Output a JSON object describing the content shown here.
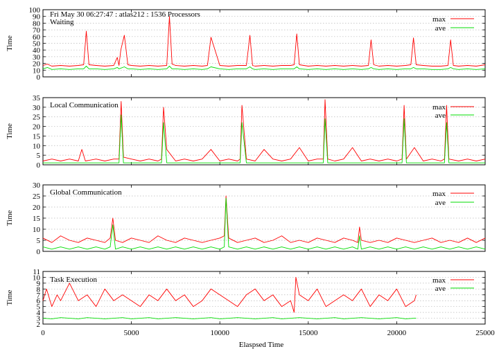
{
  "chart_data": [
    {
      "type": "line",
      "header": "Fri May 30 06:27:47 : atlas212 : 1536 Processors",
      "title": "Waiting",
      "xlabel": "",
      "ylabel": "Time",
      "xlim": [
        0,
        25000
      ],
      "ylim": [
        0,
        100
      ],
      "yticks": [
        0,
        10,
        20,
        30,
        40,
        50,
        60,
        70,
        80,
        90,
        100
      ],
      "grid": true,
      "legend_position": "top-right",
      "series": [
        {
          "name": "max",
          "color": "#ff0000",
          "x": [
            0,
            250,
            500,
            1000,
            1500,
            2000,
            2300,
            2450,
            2600,
            3000,
            3500,
            4000,
            4200,
            4300,
            4400,
            4600,
            4800,
            5000,
            5500,
            6000,
            6500,
            7000,
            7150,
            7300,
            7500,
            8000,
            8500,
            9000,
            9300,
            9500,
            10000,
            10500,
            11000,
            11500,
            11700,
            11850,
            12000,
            12500,
            13000,
            13500,
            14000,
            14200,
            14350,
            14500,
            15000,
            15500,
            16000,
            16500,
            17000,
            17500,
            18000,
            18400,
            18550,
            18700,
            19000,
            19500,
            20000,
            20500,
            20800,
            20950,
            21100,
            21500,
            22000,
            22500,
            22900,
            23050,
            23200,
            23500,
            24000,
            24500,
            25000
          ],
          "values": [
            17,
            19,
            16,
            17,
            16,
            17,
            18,
            68,
            18,
            17,
            16,
            17,
            29,
            17,
            40,
            62,
            18,
            17,
            16,
            17,
            16,
            17,
            90,
            19,
            17,
            16,
            17,
            16,
            17,
            59,
            17,
            16,
            17,
            17,
            62,
            17,
            16,
            17,
            16,
            17,
            17,
            18,
            64,
            18,
            16,
            17,
            16,
            17,
            16,
            17,
            16,
            17,
            55,
            18,
            16,
            17,
            16,
            17,
            18,
            58,
            18,
            17,
            16,
            16,
            17,
            55,
            17,
            16,
            17,
            16,
            18
          ]
        },
        {
          "name": "ave",
          "color": "#00dd00",
          "x": [
            0,
            250,
            500,
            1000,
            1500,
            2000,
            2300,
            2450,
            2600,
            3000,
            3500,
            4000,
            4200,
            4300,
            4400,
            4600,
            4800,
            5000,
            5500,
            6000,
            6500,
            7000,
            7150,
            7300,
            7500,
            8000,
            8500,
            9000,
            9300,
            9500,
            10000,
            10500,
            11000,
            11500,
            11700,
            11850,
            12000,
            12500,
            13000,
            13500,
            14000,
            14200,
            14350,
            14500,
            15000,
            15500,
            16000,
            16500,
            17000,
            17500,
            18000,
            18400,
            18550,
            18700,
            19000,
            19500,
            20000,
            20500,
            20800,
            20950,
            21100,
            21500,
            22000,
            22500,
            22900,
            23050,
            23200,
            23500,
            24000,
            24500,
            25000
          ],
          "values": [
            12,
            14,
            11,
            12,
            11,
            12,
            12,
            16,
            12,
            12,
            11,
            12,
            14,
            12,
            13,
            15,
            12,
            12,
            11,
            12,
            11,
            12,
            16,
            12,
            12,
            11,
            12,
            11,
            12,
            15,
            12,
            11,
            12,
            12,
            15,
            12,
            11,
            12,
            11,
            12,
            12,
            12,
            15,
            12,
            11,
            12,
            11,
            12,
            11,
            12,
            11,
            12,
            14,
            12,
            11,
            12,
            11,
            12,
            12,
            14,
            12,
            12,
            11,
            11,
            12,
            14,
            12,
            11,
            12,
            11,
            12
          ]
        }
      ]
    },
    {
      "type": "line",
      "title": "Local Communication",
      "xlabel": "",
      "ylabel": "Time",
      "xlim": [
        0,
        25000
      ],
      "ylim": [
        0,
        35
      ],
      "yticks": [
        0,
        5,
        10,
        15,
        20,
        25,
        30,
        35
      ],
      "grid": true,
      "legend_position": "top-right",
      "series": [
        {
          "name": "max",
          "color": "#ff0000",
          "x": [
            0,
            500,
            1000,
            1500,
            2000,
            2200,
            2400,
            3000,
            3500,
            4000,
            4300,
            4420,
            4550,
            5000,
            5500,
            6000,
            6500,
            6700,
            6820,
            7000,
            7500,
            8000,
            8500,
            9000,
            9500,
            10000,
            10500,
            11000,
            11150,
            11250,
            11500,
            12000,
            12500,
            13000,
            13500,
            14000,
            14500,
            15000,
            15500,
            15850,
            15950,
            16100,
            16500,
            17000,
            17500,
            18000,
            18500,
            19000,
            19500,
            20000,
            20300,
            20420,
            20550,
            21000,
            21500,
            22000,
            22500,
            22700,
            22820,
            22950,
            23500,
            24000,
            24500,
            25000
          ],
          "values": [
            2,
            3,
            2,
            3,
            2,
            8,
            2,
            3,
            2,
            3,
            3,
            33,
            4,
            3,
            2,
            3,
            2,
            3,
            30,
            8,
            2,
            3,
            2,
            3,
            8,
            2,
            3,
            2,
            3,
            31,
            3,
            2,
            8,
            3,
            2,
            3,
            9,
            2,
            3,
            3,
            34,
            3,
            2,
            3,
            9,
            2,
            3,
            2,
            3,
            2,
            3,
            31,
            3,
            9,
            2,
            3,
            2,
            3,
            31,
            3,
            2,
            3,
            2,
            3
          ]
        },
        {
          "name": "ave",
          "color": "#00dd00",
          "x": [
            0,
            500,
            1000,
            1500,
            2000,
            2500,
            3000,
            3500,
            4000,
            4300,
            4420,
            4550,
            5000,
            5500,
            6000,
            6500,
            6700,
            6820,
            7000,
            7500,
            8000,
            8500,
            9000,
            9500,
            10000,
            10500,
            11000,
            11150,
            11250,
            11500,
            12000,
            12500,
            13000,
            13500,
            14000,
            14500,
            15000,
            15500,
            15850,
            15950,
            16100,
            16500,
            17000,
            17500,
            18000,
            18500,
            19000,
            19500,
            20000,
            20300,
            20420,
            20550,
            21000,
            21500,
            22000,
            22500,
            22700,
            22820,
            22950,
            23500,
            24000,
            24500,
            25000
          ],
          "values": [
            1,
            1,
            1,
            1,
            1,
            1,
            1,
            1,
            1,
            1,
            26,
            1,
            1,
            1,
            1,
            1,
            1,
            22,
            1,
            1,
            1,
            1,
            1,
            1,
            1,
            1,
            1,
            1,
            22,
            1,
            1,
            1,
            1,
            1,
            1,
            1,
            1,
            1,
            1,
            24,
            1,
            1,
            1,
            1,
            1,
            1,
            1,
            1,
            1,
            1,
            24,
            1,
            1,
            1,
            1,
            1,
            1,
            22,
            1,
            1,
            1,
            1,
            1
          ]
        }
      ]
    },
    {
      "type": "line",
      "title": "Global Communication",
      "xlabel": "",
      "ylabel": "Time",
      "xlim": [
        0,
        25000
      ],
      "ylim": [
        0,
        30
      ],
      "yticks": [
        0,
        5,
        10,
        15,
        20,
        25,
        30
      ],
      "grid": true,
      "legend_position": "top-right",
      "series": [
        {
          "name": "max",
          "color": "#ff0000",
          "x": [
            0,
            500,
            1000,
            1500,
            2000,
            2500,
            3000,
            3500,
            3800,
            3950,
            4100,
            4500,
            5000,
            5500,
            6000,
            6500,
            7000,
            7500,
            8000,
            8500,
            9000,
            9500,
            10000,
            10250,
            10350,
            10500,
            11000,
            11500,
            12000,
            12500,
            13000,
            13500,
            14000,
            14500,
            15000,
            15500,
            16000,
            16500,
            17000,
            17500,
            17800,
            17900,
            18000,
            18500,
            19000,
            19500,
            20000,
            20500,
            21000,
            21500,
            22000,
            22500,
            23000,
            23500,
            24000,
            24500,
            25000
          ],
          "values": [
            6,
            4,
            7,
            5,
            4,
            6,
            5,
            4,
            6,
            15,
            5,
            4,
            6,
            5,
            4,
            7,
            5,
            4,
            6,
            5,
            4,
            5,
            6,
            7,
            25,
            6,
            4,
            5,
            6,
            4,
            5,
            7,
            4,
            5,
            4,
            6,
            5,
            4,
            6,
            5,
            4,
            11,
            5,
            4,
            5,
            4,
            6,
            5,
            4,
            5,
            6,
            4,
            5,
            4,
            6,
            4,
            6
          ]
        },
        {
          "name": "ave",
          "color": "#00dd00",
          "x": [
            0,
            500,
            1000,
            1500,
            2000,
            2500,
            3000,
            3500,
            3800,
            3950,
            4100,
            4500,
            5000,
            5500,
            6000,
            6500,
            7000,
            7500,
            8000,
            8500,
            9000,
            9500,
            10000,
            10250,
            10350,
            10500,
            11000,
            11500,
            12000,
            12500,
            13000,
            13500,
            14000,
            14500,
            15000,
            15500,
            16000,
            16500,
            17000,
            17500,
            17800,
            17900,
            18000,
            18500,
            19000,
            19500,
            20000,
            20500,
            21000,
            21500,
            22000,
            22500,
            23000,
            23500,
            24000,
            24500,
            25000
          ],
          "values": [
            2,
            1,
            2,
            1,
            2,
            1,
            2,
            1,
            2,
            12,
            1,
            2,
            1,
            2,
            1,
            2,
            1,
            2,
            1,
            2,
            1,
            2,
            1,
            2,
            24,
            2,
            1,
            2,
            1,
            2,
            1,
            2,
            1,
            2,
            1,
            2,
            1,
            2,
            1,
            2,
            1,
            7,
            1,
            2,
            1,
            2,
            1,
            2,
            1,
            2,
            1,
            2,
            1,
            2,
            1,
            2,
            1
          ]
        }
      ]
    },
    {
      "type": "line",
      "title": "Task Execution",
      "xlabel": "Elaspsed Time",
      "ylabel": "Time",
      "xlim": [
        0,
        25000
      ],
      "ylim": [
        2,
        11
      ],
      "yticks": [
        2,
        3,
        4,
        5,
        6,
        7,
        8,
        9,
        10,
        11
      ],
      "xticks": [
        0,
        5000,
        10000,
        15000,
        20000,
        25000
      ],
      "grid": true,
      "legend_position": "top-right",
      "series": [
        {
          "name": "max",
          "color": "#ff0000",
          "x": [
            0,
            200,
            500,
            800,
            1000,
            1500,
            2000,
            2500,
            3000,
            3500,
            4000,
            4500,
            5000,
            5500,
            6000,
            6500,
            7000,
            7500,
            8000,
            8500,
            9000,
            9500,
            10000,
            10500,
            11000,
            11500,
            12000,
            12500,
            13000,
            13500,
            14000,
            14200,
            14300,
            14500,
            15000,
            15500,
            16000,
            16500,
            17000,
            17500,
            18000,
            18500,
            19000,
            19500,
            20000,
            20500,
            21000,
            21100
          ],
          "values": [
            6,
            8,
            5,
            7,
            6,
            9,
            6,
            7,
            5,
            8,
            6,
            7,
            6,
            5,
            7,
            6,
            8,
            6,
            7,
            5,
            6,
            8,
            7,
            6,
            5,
            7,
            8,
            6,
            7,
            5,
            6,
            4,
            10,
            7,
            6,
            8,
            5,
            6,
            7,
            6,
            8,
            5,
            7,
            6,
            8,
            5,
            6,
            7
          ]
        },
        {
          "name": "ave",
          "color": "#00dd00",
          "x": [
            0,
            500,
            1000,
            1500,
            2000,
            2500,
            3000,
            3500,
            4000,
            4500,
            5000,
            5500,
            6000,
            6500,
            7000,
            7500,
            8000,
            8500,
            9000,
            9500,
            10000,
            10500,
            11000,
            11500,
            12000,
            12500,
            13000,
            13500,
            14000,
            14500,
            15000,
            15500,
            16000,
            16500,
            17000,
            17500,
            18000,
            18500,
            19000,
            19500,
            20000,
            20500,
            21000,
            21100
          ],
          "values": [
            3,
            2.9,
            3.1,
            3,
            2.9,
            3.1,
            3,
            2.9,
            3,
            3.1,
            2.9,
            3,
            3.1,
            2.9,
            3,
            3.1,
            3,
            2.9,
            3,
            3.1,
            2.9,
            3,
            3.1,
            3,
            2.9,
            3,
            3.1,
            2.9,
            3,
            3.1,
            3,
            2.9,
            3,
            3.1,
            2.9,
            3,
            3.1,
            3,
            2.9,
            3,
            3.1,
            2.9,
            3,
            3
          ]
        }
      ]
    }
  ]
}
